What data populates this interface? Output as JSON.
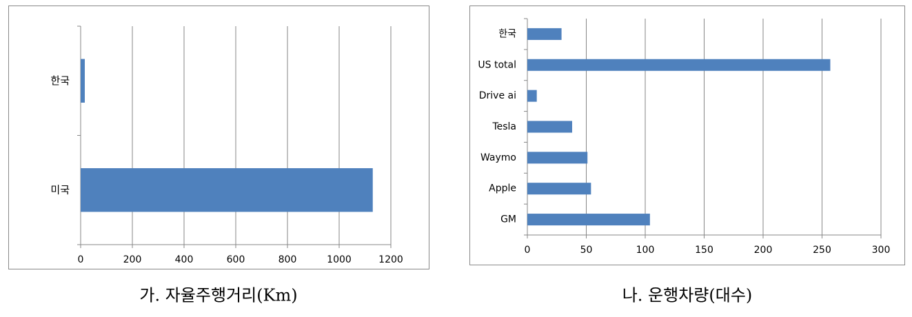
{
  "chart_data": [
    {
      "type": "bar",
      "orientation": "horizontal",
      "title": "가. 자율주행거리(Km)",
      "categories": [
        "한국",
        "미국"
      ],
      "values": [
        16,
        1130
      ],
      "color": "#4f81bd",
      "xlim": [
        0,
        1200
      ],
      "xticks": [
        0,
        200,
        400,
        600,
        800,
        1000,
        1200
      ],
      "grid": true
    },
    {
      "type": "bar",
      "orientation": "horizontal",
      "title": "나. 운행차량(대수)",
      "categories": [
        "한국",
        "US total",
        "Drive ai",
        "Tesla",
        "Waymo",
        "Apple",
        "GM"
      ],
      "values": [
        29,
        257,
        8,
        38,
        51,
        54,
        104
      ],
      "color": "#4f81bd",
      "xlim": [
        0,
        300
      ],
      "xticks": [
        0,
        50,
        100,
        150,
        200,
        250,
        300
      ],
      "grid": true
    }
  ]
}
